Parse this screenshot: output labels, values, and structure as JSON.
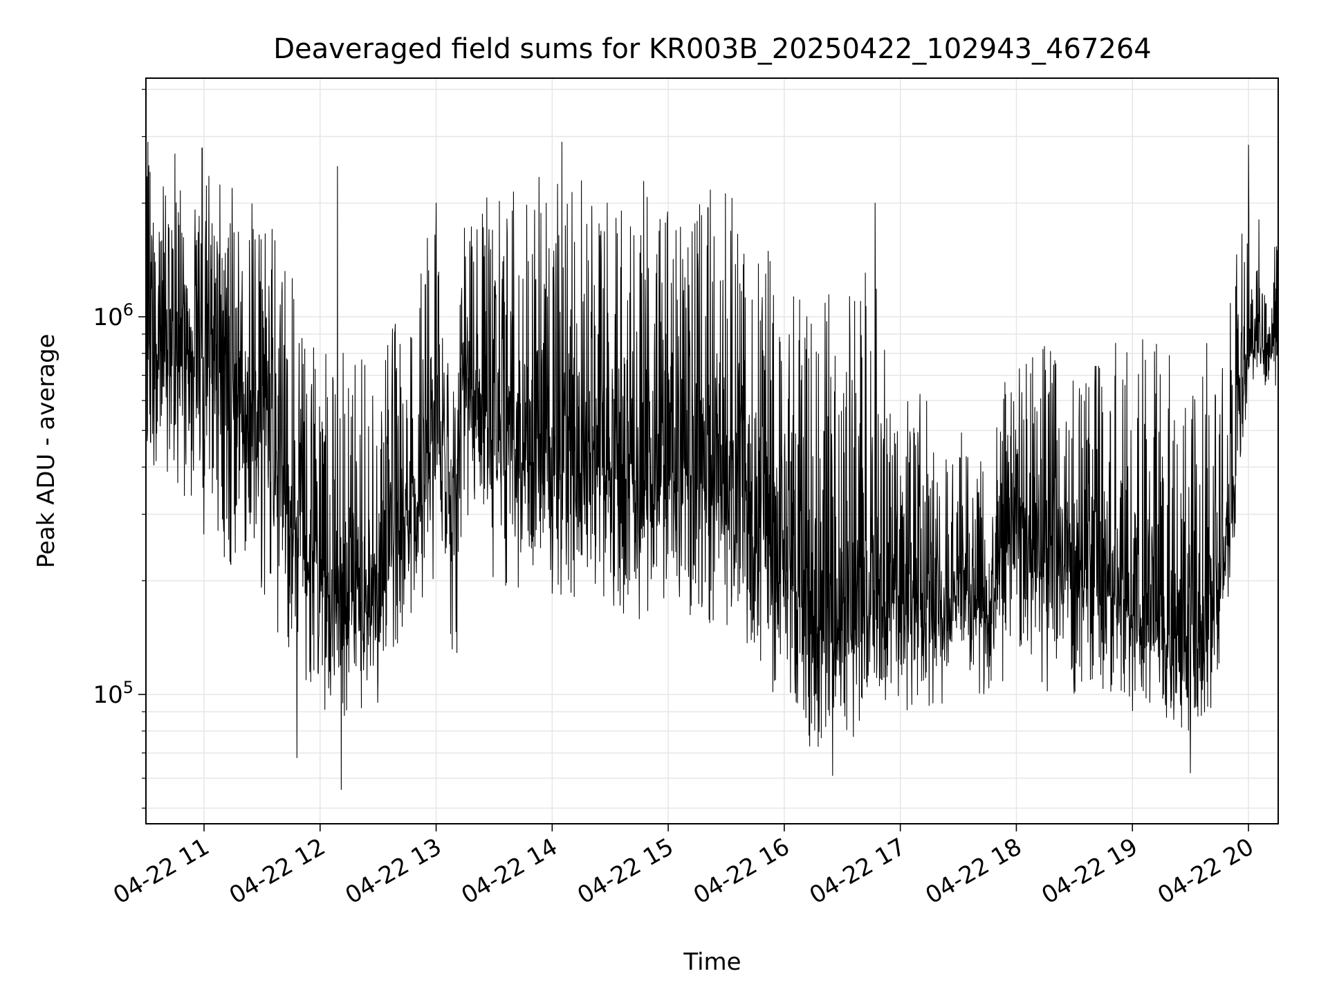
{
  "chart_data": {
    "type": "line",
    "title": "Deaveraged field sums for KR003B_20250422_102943_467264",
    "xlabel": "Time",
    "ylabel": "Peak ADU - average",
    "x_scale": "time",
    "y_scale": "log",
    "xlim": [
      "2025-04-22 10:30",
      "2025-04-22 20:00"
    ],
    "ylim": [
      45000,
      4000000
    ],
    "x_ticks": [
      {
        "value": "2025-04-22 11:00",
        "label": "04-22 11"
      },
      {
        "value": "2025-04-22 12:00",
        "label": "04-22 12"
      },
      {
        "value": "2025-04-22 13:00",
        "label": "04-22 13"
      },
      {
        "value": "2025-04-22 14:00",
        "label": "04-22 14"
      },
      {
        "value": "2025-04-22 15:00",
        "label": "04-22 15"
      },
      {
        "value": "2025-04-22 16:00",
        "label": "04-22 16"
      },
      {
        "value": "2025-04-22 17:00",
        "label": "04-22 17"
      },
      {
        "value": "2025-04-22 18:00",
        "label": "04-22 18"
      },
      {
        "value": "2025-04-22 19:00",
        "label": "04-22 19"
      },
      {
        "value": "2025-04-22 20:00",
        "label": "04-22 20"
      }
    ],
    "y_ticks": [
      {
        "value": 100000,
        "base": "10",
        "exp": "5"
      },
      {
        "value": 1000000,
        "base": "10",
        "exp": "6"
      }
    ],
    "grid": true,
    "series_color": "#000000",
    "envelope": {
      "description_note": "",
      "times": [
        "10:30",
        "10:45",
        "11:00",
        "11:15",
        "11:30",
        "11:45",
        "12:00",
        "12:15",
        "12:30",
        "12:45",
        "13:00",
        "13:10",
        "13:15",
        "13:30",
        "13:45",
        "14:00",
        "14:15",
        "14:30",
        "14:45",
        "15:00",
        "15:15",
        "15:30",
        "15:45",
        "16:00",
        "16:15",
        "16:30",
        "16:45",
        "17:00",
        "17:15",
        "17:30",
        "17:45",
        "18:00",
        "18:15",
        "18:30",
        "18:45",
        "19:00",
        "19:15",
        "19:30",
        "19:45",
        "19:55",
        "20:00"
      ],
      "median": [
        900000,
        850000,
        800000,
        650000,
        500000,
        300000,
        220000,
        170000,
        200000,
        300000,
        450000,
        330000,
        800000,
        500000,
        450000,
        400000,
        380000,
        420000,
        370000,
        400000,
        350000,
        380000,
        300000,
        220000,
        150000,
        150000,
        170000,
        180000,
        170000,
        180000,
        170000,
        300000,
        200000,
        220000,
        200000,
        170000,
        140000,
        120000,
        180000,
        500000,
        850000
      ],
      "low": [
        400000,
        350000,
        250000,
        200000,
        180000,
        120000,
        90000,
        85000,
        90000,
        150000,
        200000,
        85000,
        300000,
        200000,
        180000,
        170000,
        180000,
        170000,
        150000,
        170000,
        140000,
        150000,
        120000,
        90000,
        70000,
        70000,
        80000,
        90000,
        90000,
        100000,
        100000,
        110000,
        100000,
        100000,
        100000,
        90000,
        85000,
        80000,
        90000,
        350000,
        650000
      ],
      "high": [
        2700000,
        2600000,
        2500000,
        2200000,
        2000000,
        1300000,
        900000,
        800000,
        800000,
        1600000,
        1700000,
        800000,
        1900000,
        2200000,
        2300000,
        2400000,
        2300000,
        2200000,
        2400000,
        2300000,
        2200000,
        2300000,
        2000000,
        1500000,
        1200000,
        1300000,
        1500000,
        700000,
        600000,
        500000,
        550000,
        800000,
        850000,
        800000,
        900000,
        900000,
        950000,
        900000,
        900000,
        1600000,
        2000000
      ]
    },
    "spikes": [
      {
        "time": "10:31",
        "value": 2900000
      },
      {
        "time": "10:45",
        "value": 2700000
      },
      {
        "time": "10:59",
        "value": 2800000
      },
      {
        "time": "11:48",
        "value": 68000
      },
      {
        "time": "12:09",
        "value": 2500000
      },
      {
        "time": "12:11",
        "value": 56000
      },
      {
        "time": "13:00",
        "value": 2000000
      },
      {
        "time": "14:05",
        "value": 2900000
      },
      {
        "time": "16:25",
        "value": 61000
      },
      {
        "time": "16:47",
        "value": 2000000
      },
      {
        "time": "19:30",
        "value": 62000
      },
      {
        "time": "20:00",
        "value": 2850000
      }
    ]
  }
}
